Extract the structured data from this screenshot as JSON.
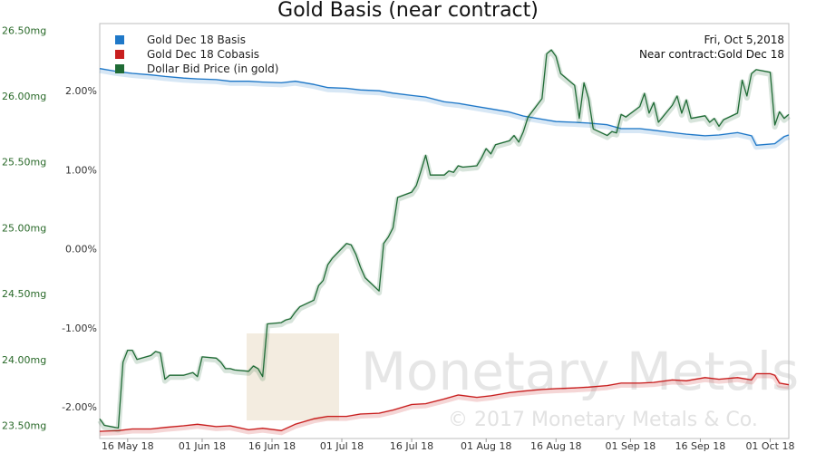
{
  "chart_data": {
    "type": "line",
    "title": "Gold Basis (near contract)",
    "info": {
      "date": "Fri, Oct 5,2018",
      "contract": "Near contract:Gold Dec 18"
    },
    "watermark": {
      "brand": "Monetary Metals",
      "copyright": "© 2017 Monetary Metals & Co."
    },
    "x_ticks": [
      "16 May 18",
      "01 Jun 18",
      "16 Jun 18",
      "01 Jul 18",
      "16 Jul 18",
      "01 Aug 18",
      "16 Aug 18",
      "01 Sep 18",
      "16 Sep 18",
      "01 Oct 18"
    ],
    "x_range": [
      "2018-05-10",
      "2018-10-05"
    ],
    "left_axis": {
      "ticks": [
        "26.50mg",
        "26.00mg",
        "25.50mg",
        "25.00mg",
        "24.50mg",
        "24.00mg",
        "23.50mg"
      ],
      "values": [
        26.5,
        26.0,
        25.5,
        25.0,
        24.5,
        24.0,
        23.5
      ],
      "ylim": [
        23.4,
        26.55
      ]
    },
    "right_axis": {
      "ticks": [
        "2.00%",
        "1.00%",
        "0.00%",
        "-1.00%",
        "-2.00%"
      ],
      "values": [
        2.0,
        1.0,
        0.0,
        -1.0,
        -2.0
      ],
      "ylim": [
        -2.4,
        2.85
      ]
    },
    "series": [
      {
        "name": "Gold Dec 18 Basis",
        "color": "#1f78c8",
        "axis": "right",
        "points": [
          [
            "2018-05-10",
            2.28
          ],
          [
            "2018-05-14",
            2.24
          ],
          [
            "2018-05-17",
            2.22
          ],
          [
            "2018-05-21",
            2.2
          ],
          [
            "2018-05-24",
            2.18
          ],
          [
            "2018-05-28",
            2.16
          ],
          [
            "2018-05-31",
            2.15
          ],
          [
            "2018-06-04",
            2.14
          ],
          [
            "2018-06-07",
            2.12
          ],
          [
            "2018-06-11",
            2.12
          ],
          [
            "2018-06-14",
            2.11
          ],
          [
            "2018-06-18",
            2.1
          ],
          [
            "2018-06-21",
            2.12
          ],
          [
            "2018-06-25",
            2.08
          ],
          [
            "2018-06-28",
            2.04
          ],
          [
            "2018-07-02",
            2.03
          ],
          [
            "2018-07-05",
            2.01
          ],
          [
            "2018-07-09",
            2.0
          ],
          [
            "2018-07-12",
            1.97
          ],
          [
            "2018-07-16",
            1.94
          ],
          [
            "2018-07-19",
            1.92
          ],
          [
            "2018-07-23",
            1.86
          ],
          [
            "2018-07-26",
            1.84
          ],
          [
            "2018-07-30",
            1.8
          ],
          [
            "2018-08-02",
            1.77
          ],
          [
            "2018-08-06",
            1.73
          ],
          [
            "2018-08-09",
            1.68
          ],
          [
            "2018-08-13",
            1.64
          ],
          [
            "2018-08-16",
            1.61
          ],
          [
            "2018-08-20",
            1.6
          ],
          [
            "2018-08-23",
            1.59
          ],
          [
            "2018-08-27",
            1.57
          ],
          [
            "2018-08-30",
            1.52
          ],
          [
            "2018-09-03",
            1.52
          ],
          [
            "2018-09-06",
            1.5
          ],
          [
            "2018-09-10",
            1.47
          ],
          [
            "2018-09-13",
            1.45
          ],
          [
            "2018-09-17",
            1.43
          ],
          [
            "2018-09-20",
            1.44
          ],
          [
            "2018-09-24",
            1.47
          ],
          [
            "2018-09-27",
            1.43
          ],
          [
            "2018-09-28",
            1.31
          ],
          [
            "2018-10-02",
            1.33
          ],
          [
            "2018-10-04",
            1.42
          ],
          [
            "2018-10-05",
            1.44
          ]
        ]
      },
      {
        "name": "Gold Dec 18 Cobasis",
        "color": "#c81e1e",
        "axis": "right",
        "points": [
          [
            "2018-05-10",
            -2.31
          ],
          [
            "2018-05-14",
            -2.3
          ],
          [
            "2018-05-17",
            -2.28
          ],
          [
            "2018-05-21",
            -2.28
          ],
          [
            "2018-05-24",
            -2.26
          ],
          [
            "2018-05-28",
            -2.24
          ],
          [
            "2018-05-31",
            -2.22
          ],
          [
            "2018-06-04",
            -2.25
          ],
          [
            "2018-06-07",
            -2.24
          ],
          [
            "2018-06-11",
            -2.29
          ],
          [
            "2018-06-14",
            -2.27
          ],
          [
            "2018-06-18",
            -2.3
          ],
          [
            "2018-06-21",
            -2.22
          ],
          [
            "2018-06-25",
            -2.15
          ],
          [
            "2018-06-28",
            -2.12
          ],
          [
            "2018-07-02",
            -2.12
          ],
          [
            "2018-07-05",
            -2.09
          ],
          [
            "2018-07-09",
            -2.08
          ],
          [
            "2018-07-12",
            -2.04
          ],
          [
            "2018-07-16",
            -1.97
          ],
          [
            "2018-07-19",
            -1.96
          ],
          [
            "2018-07-23",
            -1.9
          ],
          [
            "2018-07-26",
            -1.85
          ],
          [
            "2018-07-30",
            -1.88
          ],
          [
            "2018-08-02",
            -1.86
          ],
          [
            "2018-08-06",
            -1.82
          ],
          [
            "2018-08-09",
            -1.8
          ],
          [
            "2018-08-13",
            -1.78
          ],
          [
            "2018-08-16",
            -1.77
          ],
          [
            "2018-08-20",
            -1.76
          ],
          [
            "2018-08-23",
            -1.75
          ],
          [
            "2018-08-27",
            -1.73
          ],
          [
            "2018-08-30",
            -1.7
          ],
          [
            "2018-09-03",
            -1.7
          ],
          [
            "2018-09-06",
            -1.69
          ],
          [
            "2018-09-10",
            -1.66
          ],
          [
            "2018-09-13",
            -1.67
          ],
          [
            "2018-09-17",
            -1.63
          ],
          [
            "2018-09-20",
            -1.65
          ],
          [
            "2018-09-24",
            -1.63
          ],
          [
            "2018-09-27",
            -1.66
          ],
          [
            "2018-09-28",
            -1.58
          ],
          [
            "2018-10-01",
            -1.58
          ],
          [
            "2018-10-02",
            -1.6
          ],
          [
            "2018-10-03",
            -1.7
          ],
          [
            "2018-10-05",
            -1.72
          ]
        ]
      },
      {
        "name": "Dollar Bid Price (in gold)",
        "color": "#1f6b35",
        "axis": "left",
        "points": [
          [
            "2018-05-10",
            23.55
          ],
          [
            "2018-05-11",
            23.5
          ],
          [
            "2018-05-14",
            23.48
          ],
          [
            "2018-05-15",
            23.98
          ],
          [
            "2018-05-16",
            24.07
          ],
          [
            "2018-05-17",
            24.07
          ],
          [
            "2018-05-18",
            24.0
          ],
          [
            "2018-05-21",
            24.03
          ],
          [
            "2018-05-22",
            24.06
          ],
          [
            "2018-05-23",
            24.05
          ],
          [
            "2018-05-24",
            23.85
          ],
          [
            "2018-05-25",
            23.88
          ],
          [
            "2018-05-28",
            23.88
          ],
          [
            "2018-05-29",
            23.89
          ],
          [
            "2018-05-30",
            23.9
          ],
          [
            "2018-05-31",
            23.87
          ],
          [
            "2018-06-01",
            24.02
          ],
          [
            "2018-06-04",
            24.01
          ],
          [
            "2018-06-05",
            23.98
          ],
          [
            "2018-06-06",
            23.93
          ],
          [
            "2018-06-07",
            23.93
          ],
          [
            "2018-06-08",
            23.92
          ],
          [
            "2018-06-11",
            23.91
          ],
          [
            "2018-06-12",
            23.95
          ],
          [
            "2018-06-13",
            23.93
          ],
          [
            "2018-06-14",
            23.87
          ],
          [
            "2018-06-15",
            24.27
          ],
          [
            "2018-06-18",
            24.28
          ],
          [
            "2018-06-19",
            24.3
          ],
          [
            "2018-06-20",
            24.31
          ],
          [
            "2018-06-21",
            24.36
          ],
          [
            "2018-06-22",
            24.4
          ],
          [
            "2018-06-25",
            24.45
          ],
          [
            "2018-06-26",
            24.56
          ],
          [
            "2018-06-27",
            24.6
          ],
          [
            "2018-06-28",
            24.72
          ],
          [
            "2018-06-29",
            24.77
          ],
          [
            "2018-07-02",
            24.88
          ],
          [
            "2018-07-03",
            24.87
          ],
          [
            "2018-07-04",
            24.8
          ],
          [
            "2018-07-05",
            24.7
          ],
          [
            "2018-07-06",
            24.62
          ],
          [
            "2018-07-09",
            24.52
          ],
          [
            "2018-07-10",
            24.88
          ],
          [
            "2018-07-11",
            24.93
          ],
          [
            "2018-07-12",
            25.0
          ],
          [
            "2018-07-13",
            25.23
          ],
          [
            "2018-07-16",
            25.27
          ],
          [
            "2018-07-17",
            25.32
          ],
          [
            "2018-07-18",
            25.43
          ],
          [
            "2018-07-19",
            25.55
          ],
          [
            "2018-07-20",
            25.4
          ],
          [
            "2018-07-23",
            25.4
          ],
          [
            "2018-07-24",
            25.43
          ],
          [
            "2018-07-25",
            25.42
          ],
          [
            "2018-07-26",
            25.47
          ],
          [
            "2018-07-27",
            25.46
          ],
          [
            "2018-07-30",
            25.47
          ],
          [
            "2018-07-31",
            25.53
          ],
          [
            "2018-08-01",
            25.6
          ],
          [
            "2018-08-02",
            25.56
          ],
          [
            "2018-08-03",
            25.63
          ],
          [
            "2018-08-06",
            25.66
          ],
          [
            "2018-08-07",
            25.7
          ],
          [
            "2018-08-08",
            25.65
          ],
          [
            "2018-08-09",
            25.73
          ],
          [
            "2018-08-10",
            25.84
          ],
          [
            "2018-08-13",
            25.98
          ],
          [
            "2018-08-14",
            26.32
          ],
          [
            "2018-08-15",
            26.35
          ],
          [
            "2018-08-16",
            26.3
          ],
          [
            "2018-08-17",
            26.17
          ],
          [
            "2018-08-20",
            26.08
          ],
          [
            "2018-08-21",
            25.83
          ],
          [
            "2018-08-22",
            26.1
          ],
          [
            "2018-08-23",
            25.98
          ],
          [
            "2018-08-24",
            25.75
          ],
          [
            "2018-08-27",
            25.7
          ],
          [
            "2018-08-28",
            25.73
          ],
          [
            "2018-08-29",
            25.72
          ],
          [
            "2018-08-30",
            25.86
          ],
          [
            "2018-08-31",
            25.84
          ],
          [
            "2018-09-03",
            25.92
          ],
          [
            "2018-09-04",
            26.02
          ],
          [
            "2018-09-05",
            25.87
          ],
          [
            "2018-09-06",
            25.95
          ],
          [
            "2018-09-07",
            25.8
          ],
          [
            "2018-09-10",
            25.93
          ],
          [
            "2018-09-11",
            26.0
          ],
          [
            "2018-09-12",
            25.87
          ],
          [
            "2018-09-13",
            25.97
          ],
          [
            "2018-09-14",
            25.83
          ],
          [
            "2018-09-17",
            25.85
          ],
          [
            "2018-09-18",
            25.8
          ],
          [
            "2018-09-19",
            25.83
          ],
          [
            "2018-09-20",
            25.77
          ],
          [
            "2018-09-21",
            25.82
          ],
          [
            "2018-09-24",
            25.87
          ],
          [
            "2018-09-25",
            26.12
          ],
          [
            "2018-09-26",
            26.0
          ],
          [
            "2018-09-27",
            26.17
          ],
          [
            "2018-09-28",
            26.2
          ],
          [
            "2018-10-01",
            26.18
          ],
          [
            "2018-10-02",
            25.78
          ],
          [
            "2018-10-03",
            25.88
          ],
          [
            "2018-10-04",
            25.83
          ],
          [
            "2018-10-05",
            25.86
          ]
        ]
      }
    ]
  }
}
